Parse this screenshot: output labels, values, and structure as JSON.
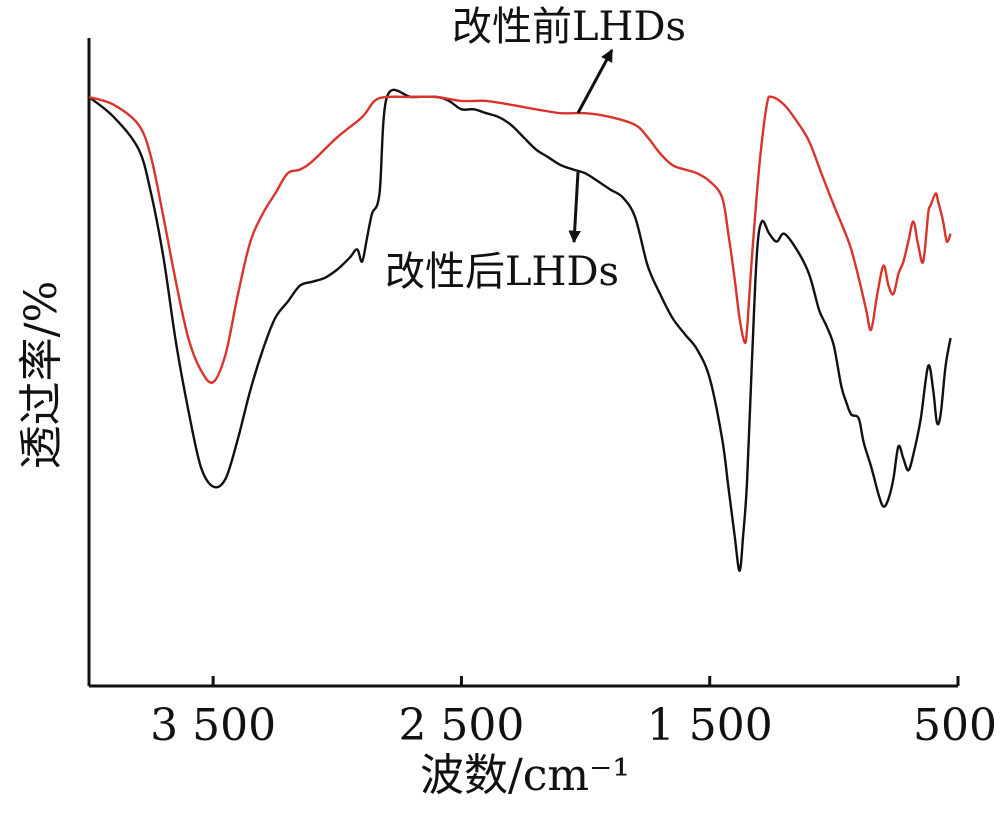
{
  "chart_data": {
    "type": "line",
    "title": "",
    "xlabel": "波数/cm⁻¹",
    "ylabel": "透过率/%",
    "xlim": [
      4000,
      500
    ],
    "x_reversed": true,
    "ylim": [
      0,
      100
    ],
    "y_ticks_shown": false,
    "grid": false,
    "x_ticks": [
      3500,
      2500,
      1500,
      500
    ],
    "x_tick_labels": [
      "3 500",
      "2 500",
      "1 500",
      "500"
    ],
    "series": [
      {
        "name": "改性前LHDs",
        "color": "#d9342b",
        "points": [
          [
            4000,
            100
          ],
          [
            3900,
            98.4
          ],
          [
            3800,
            94.3
          ],
          [
            3750,
            87.7
          ],
          [
            3700,
            75.4
          ],
          [
            3650,
            62.3
          ],
          [
            3600,
            50.8
          ],
          [
            3550,
            44.3
          ],
          [
            3500,
            41.8
          ],
          [
            3450,
            47.5
          ],
          [
            3400,
            59.8
          ],
          [
            3350,
            70.5
          ],
          [
            3300,
            76.2
          ],
          [
            3250,
            80.3
          ],
          [
            3200,
            84.4
          ],
          [
            3150,
            85.2
          ],
          [
            3100,
            86.9
          ],
          [
            3000,
            91.8
          ],
          [
            2900,
            95.9
          ],
          [
            2850,
            99.2
          ],
          [
            2800,
            100
          ],
          [
            2700,
            100
          ],
          [
            2600,
            100
          ],
          [
            2500,
            99.2
          ],
          [
            2400,
            99.2
          ],
          [
            2300,
            98.4
          ],
          [
            2200,
            97.5
          ],
          [
            2100,
            96.7
          ],
          [
            2000,
            96.7
          ],
          [
            1900,
            95.9
          ],
          [
            1800,
            94.3
          ],
          [
            1750,
            91.8
          ],
          [
            1700,
            88.5
          ],
          [
            1650,
            86.1
          ],
          [
            1600,
            85.2
          ],
          [
            1550,
            84.4
          ],
          [
            1500,
            82.8
          ],
          [
            1450,
            79.5
          ],
          [
            1425,
            72.1
          ],
          [
            1400,
            63.1
          ],
          [
            1380,
            54.9
          ],
          [
            1360,
            50.0
          ],
          [
            1350,
            52.5
          ],
          [
            1330,
            67.2
          ],
          [
            1300,
            86.1
          ],
          [
            1270,
            98.4
          ],
          [
            1250,
            100
          ],
          [
            1200,
            98.4
          ],
          [
            1150,
            95.1
          ],
          [
            1100,
            91.0
          ],
          [
            1050,
            84.4
          ],
          [
            1000,
            77.9
          ],
          [
            960,
            73.0
          ],
          [
            930,
            68.9
          ],
          [
            900,
            63.1
          ],
          [
            870,
            56.6
          ],
          [
            850,
            52.5
          ],
          [
            825,
            59.8
          ],
          [
            800,
            65.6
          ],
          [
            780,
            61.5
          ],
          [
            760,
            59.8
          ],
          [
            740,
            63.9
          ],
          [
            720,
            66.4
          ],
          [
            700,
            70.5
          ],
          [
            680,
            74.6
          ],
          [
            660,
            69.7
          ],
          [
            640,
            66.4
          ],
          [
            620,
            76.2
          ],
          [
            610,
            77.9
          ],
          [
            590,
            80.3
          ],
          [
            580,
            78.7
          ],
          [
            560,
            74.6
          ],
          [
            545,
            70.5
          ],
          [
            530,
            72.1
          ]
        ]
      },
      {
        "name": "改性后LHDs",
        "color": "#111111",
        "points": [
          [
            4000,
            100
          ],
          [
            3900,
            95.9
          ],
          [
            3800,
            89.3
          ],
          [
            3750,
            80.3
          ],
          [
            3700,
            67.2
          ],
          [
            3650,
            50.0
          ],
          [
            3600,
            36.1
          ],
          [
            3550,
            24.6
          ],
          [
            3500,
            20.5
          ],
          [
            3450,
            22.1
          ],
          [
            3400,
            30.3
          ],
          [
            3350,
            40.2
          ],
          [
            3300,
            48.4
          ],
          [
            3250,
            54.9
          ],
          [
            3200,
            58.2
          ],
          [
            3150,
            61.5
          ],
          [
            3100,
            62.3
          ],
          [
            3050,
            63.1
          ],
          [
            3000,
            64.8
          ],
          [
            2950,
            67.2
          ],
          [
            2920,
            68.9
          ],
          [
            2900,
            66.4
          ],
          [
            2880,
            71.3
          ],
          [
            2860,
            76.2
          ],
          [
            2830,
            80.3
          ],
          [
            2800,
            100
          ],
          [
            2700,
            100
          ],
          [
            2600,
            100
          ],
          [
            2550,
            99.2
          ],
          [
            2500,
            97.5
          ],
          [
            2450,
            97.5
          ],
          [
            2400,
            96.7
          ],
          [
            2350,
            95.9
          ],
          [
            2300,
            94.3
          ],
          [
            2250,
            91.8
          ],
          [
            2200,
            89.3
          ],
          [
            2150,
            87.7
          ],
          [
            2100,
            86.1
          ],
          [
            2050,
            85.2
          ],
          [
            2000,
            84.4
          ],
          [
            1950,
            82.8
          ],
          [
            1900,
            81.1
          ],
          [
            1850,
            79.5
          ],
          [
            1800,
            75.4
          ],
          [
            1750,
            65.6
          ],
          [
            1700,
            59.8
          ],
          [
            1650,
            54.9
          ],
          [
            1600,
            51.6
          ],
          [
            1550,
            48.4
          ],
          [
            1500,
            42.6
          ],
          [
            1450,
            30.3
          ],
          [
            1425,
            20.5
          ],
          [
            1400,
            10.7
          ],
          [
            1380,
            3.3
          ],
          [
            1365,
            10.7
          ],
          [
            1350,
            21.3
          ],
          [
            1330,
            45.9
          ],
          [
            1310,
            68.0
          ],
          [
            1290,
            74.6
          ],
          [
            1260,
            72.1
          ],
          [
            1230,
            70.5
          ],
          [
            1200,
            72.1
          ],
          [
            1150,
            68.9
          ],
          [
            1100,
            63.9
          ],
          [
            1060,
            56.6
          ],
          [
            1030,
            53.3
          ],
          [
            1000,
            49.2
          ],
          [
            970,
            41.0
          ],
          [
            950,
            37.7
          ],
          [
            930,
            35.2
          ],
          [
            900,
            34.4
          ],
          [
            880,
            29.5
          ],
          [
            850,
            24.6
          ],
          [
            820,
            18.9
          ],
          [
            800,
            16.4
          ],
          [
            780,
            18.0
          ],
          [
            760,
            22.1
          ],
          [
            740,
            28.7
          ],
          [
            720,
            26.2
          ],
          [
            700,
            23.8
          ],
          [
            680,
            27.0
          ],
          [
            650,
            34.4
          ],
          [
            620,
            45.1
          ],
          [
            600,
            40.2
          ],
          [
            585,
            33.6
          ],
          [
            570,
            35.2
          ],
          [
            550,
            45.1
          ],
          [
            530,
            50.8
          ]
        ]
      }
    ],
    "annotations": [
      {
        "text": "改性前LHDs",
        "target_series": "改性前LHDs"
      },
      {
        "text": "改性后LHDs",
        "target_series": "改性后LHDs"
      }
    ]
  }
}
